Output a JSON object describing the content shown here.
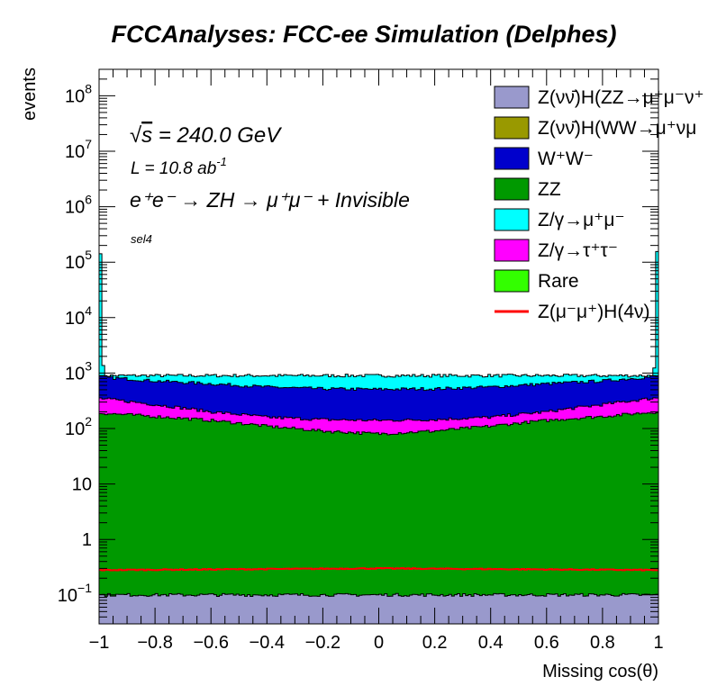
{
  "chart_data": {
    "type": "area",
    "stacked": true,
    "title": "FCCAnalyses: FCC-ee Simulation (Delphes)",
    "xlabel": "Missing cos(θ)",
    "ylabel": "events",
    "xlim": [
      -1,
      1
    ],
    "ylim": [
      0.03,
      300000000
    ],
    "yscale": "log",
    "x_ticks": [
      "−1",
      "−0.8",
      "−0.6",
      "−0.4",
      "−0.2",
      "0",
      "0.2",
      "0.4",
      "0.6",
      "0.8",
      "1"
    ],
    "y_ticks": [
      {
        "value": 0.1,
        "base": "10",
        "exp": "−1"
      },
      {
        "value": 1,
        "base": "1",
        "exp": ""
      },
      {
        "value": 10,
        "base": "10",
        "exp": ""
      },
      {
        "value": 100,
        "base": "10",
        "exp": "2"
      },
      {
        "value": 1000,
        "base": "10",
        "exp": "3"
      },
      {
        "value": 10000,
        "base": "10",
        "exp": "4"
      },
      {
        "value": 100000,
        "base": "10",
        "exp": "5"
      },
      {
        "value": 1000000,
        "base": "10",
        "exp": "6"
      },
      {
        "value": 10000000,
        "base": "10",
        "exp": "7"
      },
      {
        "value": 100000000,
        "base": "10",
        "exp": "8"
      }
    ],
    "annotations": {
      "energy_pre": "√",
      "energy_s": "s",
      "energy_rest": " = 240.0 GeV",
      "lumi_main": "L = 10.8 ab",
      "lumi_exp": "-1",
      "process": "e⁺e⁻ → ZH → μ⁺μ⁻ + Invisible",
      "selection": "sel4"
    },
    "legend": {
      "placement": "top-right",
      "entries": [
        {
          "label": "Z(νν̄)H(ZZ→μ⁺μ⁻ν⁺",
          "color": "#9999cc",
          "kind": "fill"
        },
        {
          "label": "Z(νν̄)H(WW→μ⁺νμ",
          "color": "#999900",
          "kind": "fill"
        },
        {
          "label": "W⁺W⁻",
          "color": "#0000cc",
          "kind": "fill"
        },
        {
          "label": "ZZ",
          "color": "#009900",
          "kind": "fill"
        },
        {
          "label": "Z/γ→μ⁺μ⁻",
          "color": "#00ffff",
          "kind": "fill"
        },
        {
          "label": "Z/γ→τ⁺τ⁻",
          "color": "#ff00ff",
          "kind": "fill"
        },
        {
          "label": "Rare",
          "color": "#33ff00",
          "kind": "fill"
        },
        {
          "label": "Z(μ⁻μ⁺)H(4ν)",
          "color": "#ff0000",
          "kind": "line"
        }
      ]
    },
    "series_order_bottom_to_top": [
      "Z(νν̄)H(ZZ→μ⁺μ⁻ν⁺",
      "ZZ",
      "Z/γ→τ⁺τ⁻",
      "W⁺W⁻",
      "Z/γ→μ⁺μ⁻",
      "Z(νν̄)H(WW→μ⁺νμ",
      "Rare"
    ],
    "series": [
      {
        "name": "Z(νν̄)H(ZZ→μ⁺μ⁻ν⁺",
        "color": "#9999cc",
        "x": [
          -1,
          0,
          1
        ],
        "cumulative_top": [
          0.1,
          0.1,
          0.1
        ]
      },
      {
        "name": "ZZ",
        "color": "#009900",
        "x": [
          -1,
          -0.8,
          -0.6,
          -0.4,
          -0.2,
          0,
          0.2,
          0.4,
          0.6,
          0.8,
          1
        ],
        "cumulative_top": [
          190,
          165,
          140,
          110,
          90,
          80,
          90,
          110,
          140,
          165,
          200
        ]
      },
      {
        "name": "Z/γ→τ⁺τ⁻",
        "color": "#ff00ff",
        "x": [
          -1,
          -0.8,
          -0.6,
          -0.4,
          -0.2,
          0,
          0.2,
          0.4,
          0.6,
          0.8,
          1
        ],
        "cumulative_top": [
          350,
          270,
          200,
          160,
          145,
          140,
          145,
          160,
          200,
          270,
          360
        ]
      },
      {
        "name": "W⁺W⁻",
        "color": "#0000cc",
        "x": [
          -1,
          -0.8,
          -0.6,
          -0.4,
          -0.2,
          0,
          0.2,
          0.4,
          0.6,
          0.8,
          1
        ],
        "cumulative_top": [
          850,
          720,
          640,
          560,
          520,
          510,
          520,
          560,
          640,
          720,
          870
        ]
      },
      {
        "name": "Z/γ→μ⁺μ⁻",
        "color": "#00ffff",
        "x": [
          -1,
          -0.99,
          -0.98,
          0.98,
          0.99,
          1
        ],
        "cumulative_top": [
          300000,
          1700,
          900,
          900,
          1700,
          300000
        ]
      },
      {
        "name": "Z(νν̄)H(WW→μ⁺νμ",
        "color": "#999900",
        "x": [
          -1,
          0,
          1
        ],
        "cumulative_top": [
          null,
          null,
          null
        ]
      },
      {
        "name": "Rare",
        "color": "#33ff00",
        "x": [
          -1,
          0,
          1
        ],
        "cumulative_top": [
          null,
          null,
          null
        ]
      },
      {
        "name": "Z(μ⁻μ⁺)H(4ν)",
        "color": "#ff0000",
        "kind": "line",
        "x": [
          -1,
          0,
          1
        ],
        "values": [
          0.28,
          0.3,
          0.28
        ]
      }
    ]
  }
}
